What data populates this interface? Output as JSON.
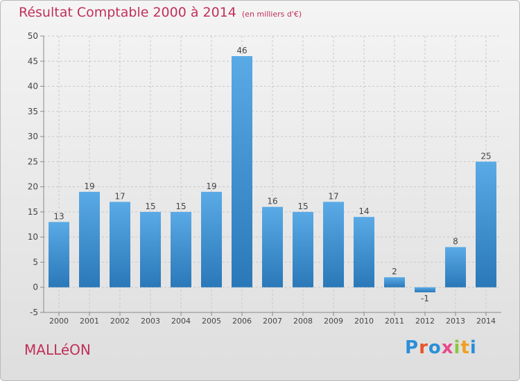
{
  "header": {
    "title": "Résultat Comptable 2000 à 2014",
    "subtitle": "(en milliers d'€)"
  },
  "footer": {
    "commune": "MALLéON",
    "logo_text": "Proxiti"
  },
  "colors": {
    "title": "#c0305a",
    "bar_light": "#5aaae6",
    "bar_dark": "#2a78b8",
    "logo": [
      "#2a8fd8",
      "#e8552a",
      "#2a8fd8",
      "#e84a8a",
      "#8cc63f",
      "#f0a020",
      "#2a8fd8"
    ]
  },
  "chart_data": {
    "type": "bar",
    "title": "Résultat Comptable 2000 à 2014",
    "ylabel": "(en milliers d'€)",
    "xlabel": "",
    "categories": [
      "2000",
      "2001",
      "2002",
      "2003",
      "2004",
      "2005",
      "2006",
      "2007",
      "2008",
      "2009",
      "2010",
      "2011",
      "2012",
      "2013",
      "2014"
    ],
    "values": [
      13,
      19,
      17,
      15,
      15,
      19,
      46,
      16,
      15,
      17,
      14,
      2,
      -1,
      8,
      25
    ],
    "ylim": [
      -5,
      50
    ],
    "yticks": [
      -5,
      0,
      5,
      10,
      15,
      20,
      25,
      30,
      35,
      40,
      45,
      50
    ],
    "grid": true
  }
}
